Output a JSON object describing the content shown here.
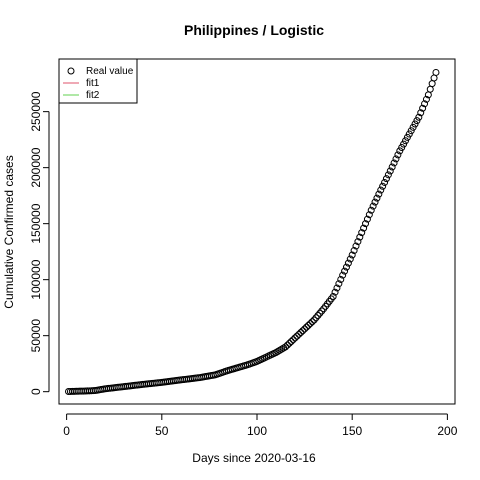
{
  "chart_data": {
    "type": "scatter",
    "title": "Philippines / Logistic",
    "xlabel": "Days since 2020-03-16",
    "ylabel": "Cumulative Confirmed cases",
    "xlim": [
      -4,
      204
    ],
    "ylim": [
      -11000,
      297000
    ],
    "x_ticks": [
      0,
      50,
      100,
      150,
      200
    ],
    "x_tick_labels": [
      "0",
      "50",
      "100",
      "150",
      "200"
    ],
    "y_ticks": [
      0,
      50000,
      100000,
      150000,
      200000,
      250000
    ],
    "y_tick_labels": [
      "0",
      "50000",
      "100000",
      "150000",
      "200000",
      "250000"
    ],
    "grid": false,
    "legend": {
      "position": "top-left",
      "entries": [
        {
          "label": "Real value",
          "symbol": "circle",
          "color": "#000000"
        },
        {
          "label": "fit1",
          "symbol": "line",
          "color": "#DF536B"
        },
        {
          "label": "fit2",
          "symbol": "line",
          "color": "#61D04F"
        }
      ]
    },
    "series": [
      {
        "name": "Real value",
        "color": "#000000",
        "marker": "open-circle",
        "points": [
          [
            1,
            150
          ],
          [
            10,
            600
          ],
          [
            15,
            1000
          ],
          [
            20,
            2500
          ],
          [
            30,
            4500
          ],
          [
            40,
            6500
          ],
          [
            50,
            8300
          ],
          [
            60,
            10500
          ],
          [
            70,
            12600
          ],
          [
            78,
            15000
          ],
          [
            85,
            19000
          ],
          [
            95,
            24000
          ],
          [
            100,
            27000
          ],
          [
            105,
            31000
          ],
          [
            110,
            35000
          ],
          [
            115,
            40000
          ],
          [
            120,
            48000
          ],
          [
            125,
            56000
          ],
          [
            130,
            64000
          ],
          [
            135,
            74000
          ],
          [
            140,
            85000
          ],
          [
            145,
            104000
          ],
          [
            150,
            122000
          ],
          [
            155,
            142000
          ],
          [
            160,
            162000
          ],
          [
            165,
            180000
          ],
          [
            170,
            197000
          ],
          [
            175,
            215000
          ],
          [
            180,
            230000
          ],
          [
            185,
            245000
          ],
          [
            190,
            265000
          ],
          [
            194,
            285000
          ]
        ]
      }
    ]
  }
}
